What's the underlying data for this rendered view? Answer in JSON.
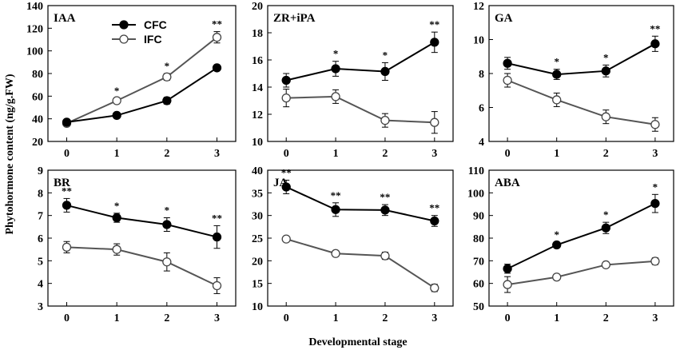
{
  "figure": {
    "ylabel": "Phytohormone content (ng/g.FW)",
    "xlabel": "Developmental  stage"
  },
  "legend": {
    "items": [
      {
        "name": "CFC",
        "marker": "filled",
        "color": "#000000"
      },
      {
        "name": "IFC",
        "marker": "open",
        "color": "#555555"
      }
    ]
  },
  "chart_data": [
    {
      "type": "line",
      "title": "IAA",
      "categories": [
        "0",
        "1",
        "2",
        "3"
      ],
      "ylim": [
        20,
        140
      ],
      "yticks": [
        20,
        40,
        60,
        80,
        100,
        120,
        140
      ],
      "series": [
        {
          "name": "CFC",
          "values": [
            37,
            43,
            56,
            85
          ],
          "errors": [
            1.5,
            1.5,
            3,
            1.5
          ]
        },
        {
          "name": "IFC",
          "values": [
            36,
            56,
            77,
            112
          ],
          "errors": [
            2,
            2,
            3,
            5
          ]
        }
      ],
      "significance": [
        "",
        "*",
        "*",
        "**"
      ]
    },
    {
      "type": "line",
      "title": "ZR+iPA",
      "categories": [
        "0",
        "1",
        "2",
        "3"
      ],
      "ylim": [
        10,
        20
      ],
      "yticks": [
        10,
        12,
        14,
        16,
        18,
        20
      ],
      "series": [
        {
          "name": "CFC",
          "values": [
            14.5,
            15.35,
            15.15,
            17.3
          ],
          "errors": [
            0.5,
            0.55,
            0.65,
            0.75
          ]
        },
        {
          "name": "IFC",
          "values": [
            13.2,
            13.3,
            11.55,
            11.4
          ],
          "errors": [
            0.65,
            0.5,
            0.5,
            0.8
          ]
        }
      ],
      "significance": [
        "",
        "*",
        "*",
        "**"
      ]
    },
    {
      "type": "line",
      "title": "GA",
      "categories": [
        "0",
        "1",
        "2",
        "3"
      ],
      "ylim": [
        4,
        12
      ],
      "yticks": [
        4,
        6,
        8,
        10,
        12
      ],
      "series": [
        {
          "name": "CFC",
          "values": [
            8.6,
            7.95,
            8.15,
            9.75
          ],
          "errors": [
            0.35,
            0.3,
            0.35,
            0.45
          ]
        },
        {
          "name": "IFC",
          "values": [
            7.6,
            6.45,
            5.45,
            5.0
          ],
          "errors": [
            0.4,
            0.4,
            0.4,
            0.4
          ]
        }
      ],
      "significance": [
        "",
        "*",
        "*",
        "**"
      ]
    },
    {
      "type": "line",
      "title": "BR",
      "categories": [
        "0",
        "1",
        "2",
        "3"
      ],
      "ylim": [
        3,
        9
      ],
      "yticks": [
        3,
        4,
        5,
        6,
        7,
        8,
        9
      ],
      "series": [
        {
          "name": "CFC",
          "values": [
            7.45,
            6.9,
            6.6,
            6.05
          ],
          "errors": [
            0.3,
            0.2,
            0.3,
            0.5
          ]
        },
        {
          "name": "IFC",
          "values": [
            5.6,
            5.5,
            4.95,
            3.9
          ],
          "errors": [
            0.25,
            0.25,
            0.4,
            0.35
          ]
        }
      ],
      "significance": [
        "**",
        "*",
        "*",
        "**"
      ]
    },
    {
      "type": "line",
      "title": "JA",
      "categories": [
        "0",
        "1",
        "2",
        "3"
      ],
      "ylim": [
        10,
        40
      ],
      "yticks": [
        10,
        15,
        20,
        25,
        30,
        35,
        40
      ],
      "series": [
        {
          "name": "CFC",
          "values": [
            36.3,
            31.3,
            31.2,
            28.8
          ],
          "errors": [
            1.5,
            1.5,
            1.2,
            1.2
          ]
        },
        {
          "name": "IFC",
          "values": [
            24.8,
            21.6,
            21.1,
            14.0
          ],
          "errors": [
            0.4,
            0.6,
            0.8,
            0.8
          ]
        }
      ],
      "significance": [
        "**",
        "**",
        "**",
        "**"
      ]
    },
    {
      "type": "line",
      "title": "ABA",
      "categories": [
        "0",
        "1",
        "2",
        "3"
      ],
      "ylim": [
        50,
        110
      ],
      "yticks": [
        50,
        60,
        70,
        80,
        90,
        100,
        110
      ],
      "series": [
        {
          "name": "CFC",
          "values": [
            66.5,
            77,
            84.5,
            95.3
          ],
          "errors": [
            2,
            1.2,
            2.5,
            4
          ]
        },
        {
          "name": "IFC",
          "values": [
            59.5,
            62.8,
            68.2,
            69.8
          ],
          "errors": [
            3.5,
            1.2,
            1,
            1.5
          ]
        }
      ],
      "significance": [
        "",
        "*",
        "*",
        "*"
      ]
    }
  ]
}
